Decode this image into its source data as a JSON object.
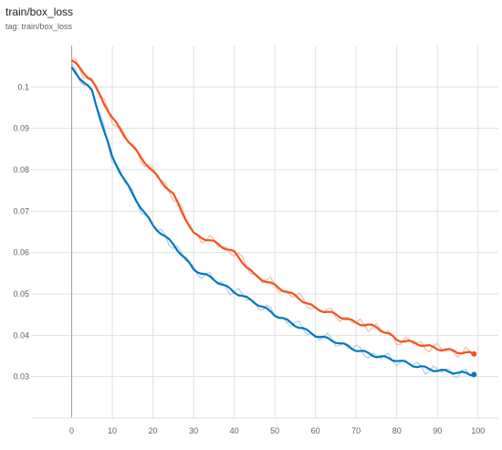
{
  "header": {
    "title": "train/box_loss",
    "tag": "tag: train/box_loss"
  },
  "chart_data": {
    "type": "line",
    "title": "train/box_loss",
    "xlabel": "",
    "ylabel": "",
    "xlim": [
      -10,
      105
    ],
    "ylim": [
      0.02,
      0.11
    ],
    "x_ticks": [
      0,
      10,
      20,
      30,
      40,
      50,
      60,
      70,
      80,
      90,
      100
    ],
    "y_ticks": [
      0.03,
      0.04,
      0.05,
      0.06,
      0.07,
      0.08,
      0.09,
      0.1
    ],
    "y_tick_labels": [
      "0.03",
      "0.04",
      "0.05",
      "0.06",
      "0.07",
      "0.08",
      "0.09",
      "0.1"
    ],
    "grid": true,
    "series": [
      {
        "color": "#f4511e",
        "raw_color": "#f7b8a2",
        "x": [
          0,
          5,
          10,
          15,
          20,
          25,
          30,
          35,
          40,
          45,
          50,
          55,
          60,
          65,
          70,
          75,
          80,
          85,
          90,
          95,
          99
        ],
        "values": [
          0.1065,
          0.1015,
          0.0925,
          0.0855,
          0.0795,
          0.074,
          0.0645,
          0.0625,
          0.06,
          0.0545,
          0.052,
          0.0495,
          0.0465,
          0.045,
          0.043,
          0.042,
          0.039,
          0.038,
          0.0368,
          0.036,
          0.0355
        ]
      },
      {
        "color": "#0277bd",
        "raw_color": "#a9cfe6",
        "x": [
          0,
          5,
          10,
          15,
          20,
          25,
          30,
          35,
          40,
          45,
          50,
          55,
          60,
          65,
          70,
          75,
          80,
          85,
          90,
          95,
          99
        ],
        "values": [
          0.1045,
          0.099,
          0.083,
          0.074,
          0.0665,
          0.062,
          0.056,
          0.0535,
          0.0505,
          0.048,
          0.045,
          0.0425,
          0.04,
          0.0385,
          0.0365,
          0.035,
          0.034,
          0.0325,
          0.0315,
          0.031,
          0.0305
        ]
      }
    ]
  }
}
